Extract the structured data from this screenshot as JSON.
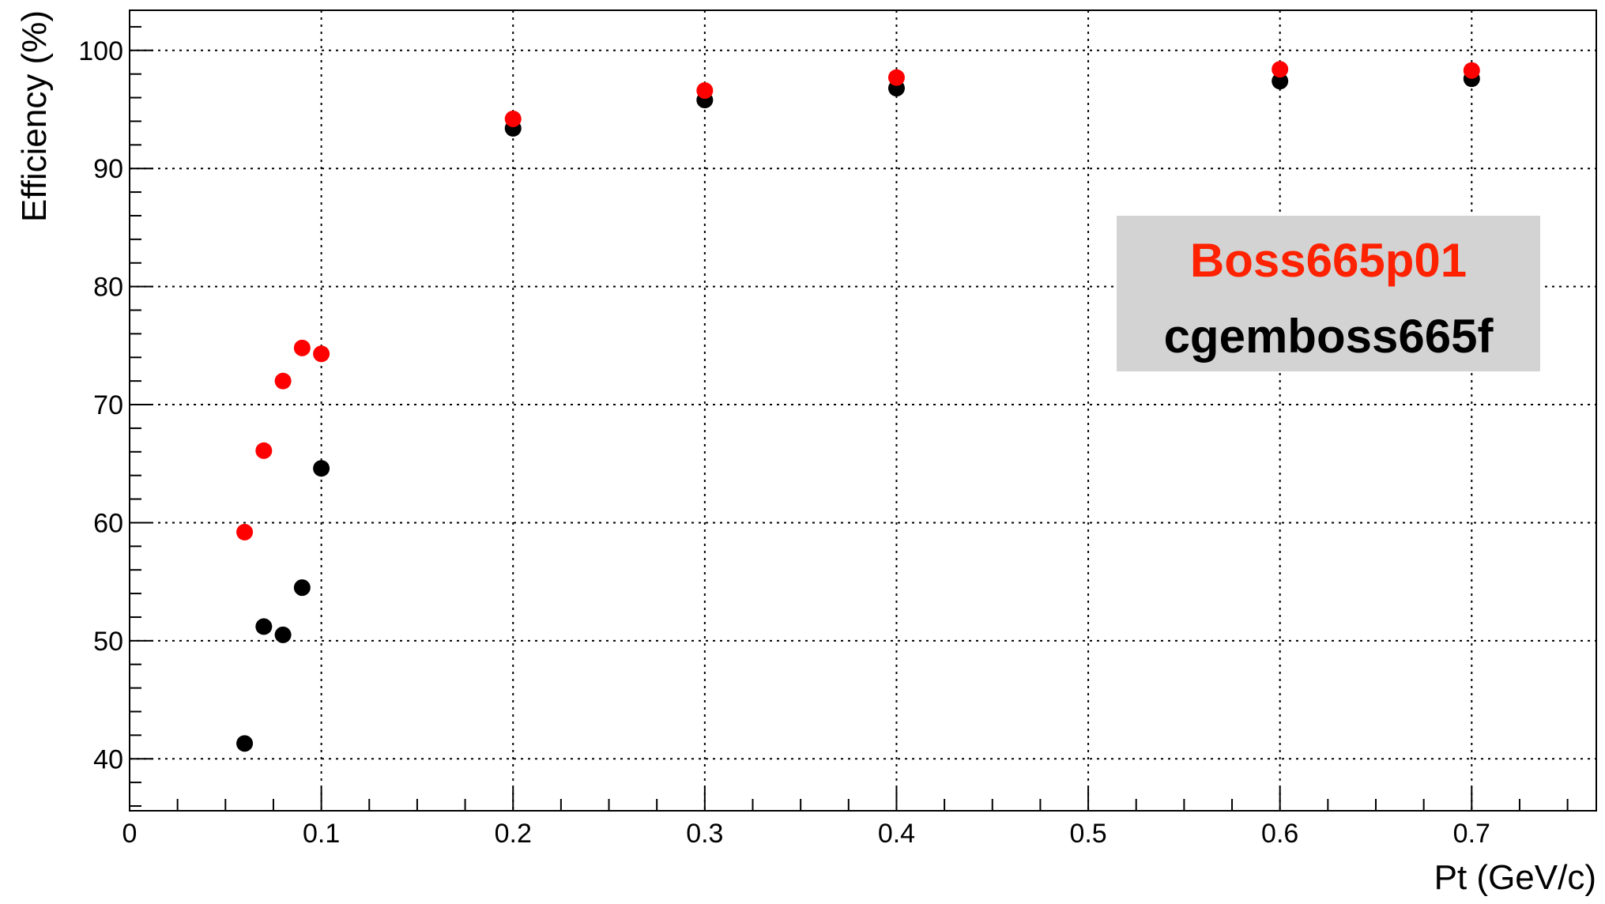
{
  "chart_data": {
    "type": "scatter",
    "xlabel": "Pt (GeV/c)",
    "ylabel": "Efficiency (%)",
    "xlim": [
      0,
      0.765
    ],
    "ylim": [
      35.6,
      103.4
    ],
    "x_ticks": [
      0,
      0.1,
      0.2,
      0.3,
      0.4,
      0.5,
      0.6,
      0.7
    ],
    "x_tick_labels": [
      "0",
      "0.1",
      "0.2",
      "0.3",
      "0.4",
      "0.5",
      "0.6",
      "0.7"
    ],
    "y_ticks": [
      40,
      50,
      60,
      70,
      80,
      90,
      100
    ],
    "y_tick_labels": [
      "40",
      "50",
      "60",
      "70",
      "80",
      "90",
      "100"
    ],
    "grid": true,
    "legend_placement": "right",
    "series": [
      {
        "name": "Boss665p01",
        "color": "#ff0000",
        "points": [
          {
            "x": 0.06,
            "y": 59.2
          },
          {
            "x": 0.07,
            "y": 66.1
          },
          {
            "x": 0.08,
            "y": 72.0
          },
          {
            "x": 0.09,
            "y": 74.8
          },
          {
            "x": 0.1,
            "y": 74.3
          },
          {
            "x": 0.2,
            "y": 94.2
          },
          {
            "x": 0.3,
            "y": 96.6
          },
          {
            "x": 0.4,
            "y": 97.7
          },
          {
            "x": 0.6,
            "y": 98.4
          },
          {
            "x": 0.7,
            "y": 98.3
          }
        ]
      },
      {
        "name": "cgemboss665f",
        "color": "#000000",
        "points": [
          {
            "x": 0.06,
            "y": 41.3
          },
          {
            "x": 0.07,
            "y": 51.2
          },
          {
            "x": 0.08,
            "y": 50.5
          },
          {
            "x": 0.09,
            "y": 54.5
          },
          {
            "x": 0.1,
            "y": 64.6
          },
          {
            "x": 0.2,
            "y": 93.4
          },
          {
            "x": 0.3,
            "y": 95.8
          },
          {
            "x": 0.4,
            "y": 96.8
          },
          {
            "x": 0.6,
            "y": 97.4
          },
          {
            "x": 0.7,
            "y": 97.6
          }
        ]
      }
    ]
  }
}
